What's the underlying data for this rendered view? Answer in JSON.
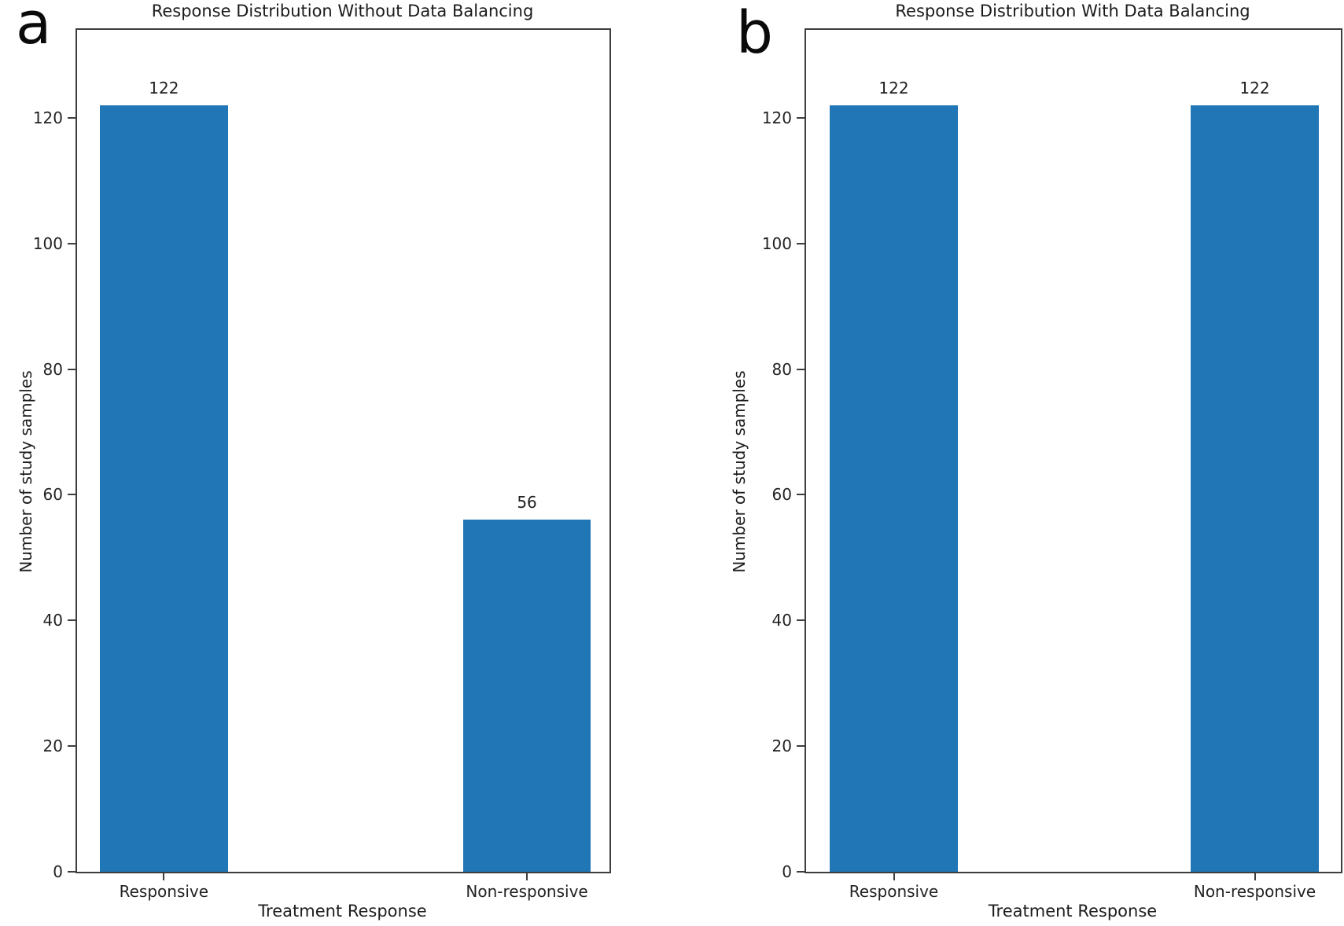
{
  "figure": {
    "background": "#ffffff",
    "text_color": "#1d1d1d",
    "axis_color": "#3d3d3d"
  },
  "panels": [
    {
      "letter": "a"
    },
    {
      "letter": "b"
    }
  ],
  "chart_data": [
    {
      "type": "bar",
      "panel_letter": "a",
      "title": "Response Distribution Without Data Balancing",
      "xlabel": "Treatment Response",
      "ylabel": "Number of study samples",
      "categories": [
        "Responsive",
        "Non-responsive"
      ],
      "values": [
        122,
        56
      ],
      "bar_value_labels": [
        "122",
        "56"
      ],
      "yticks": [
        0,
        20,
        40,
        60,
        80,
        100,
        120
      ],
      "ylim": [
        0,
        134
      ],
      "bar_color": "#2176b5",
      "grid": false,
      "legend": false
    },
    {
      "type": "bar",
      "panel_letter": "b",
      "title": "Response Distribution With Data Balancing",
      "xlabel": "Treatment Response",
      "ylabel": "Number of study samples",
      "categories": [
        "Responsive",
        "Non-responsive"
      ],
      "values": [
        122,
        122
      ],
      "bar_value_labels": [
        "122",
        "122"
      ],
      "yticks": [
        0,
        20,
        40,
        60,
        80,
        100,
        120
      ],
      "ylim": [
        0,
        134
      ],
      "bar_color": "#2176b5",
      "grid": false,
      "legend": false
    }
  ]
}
